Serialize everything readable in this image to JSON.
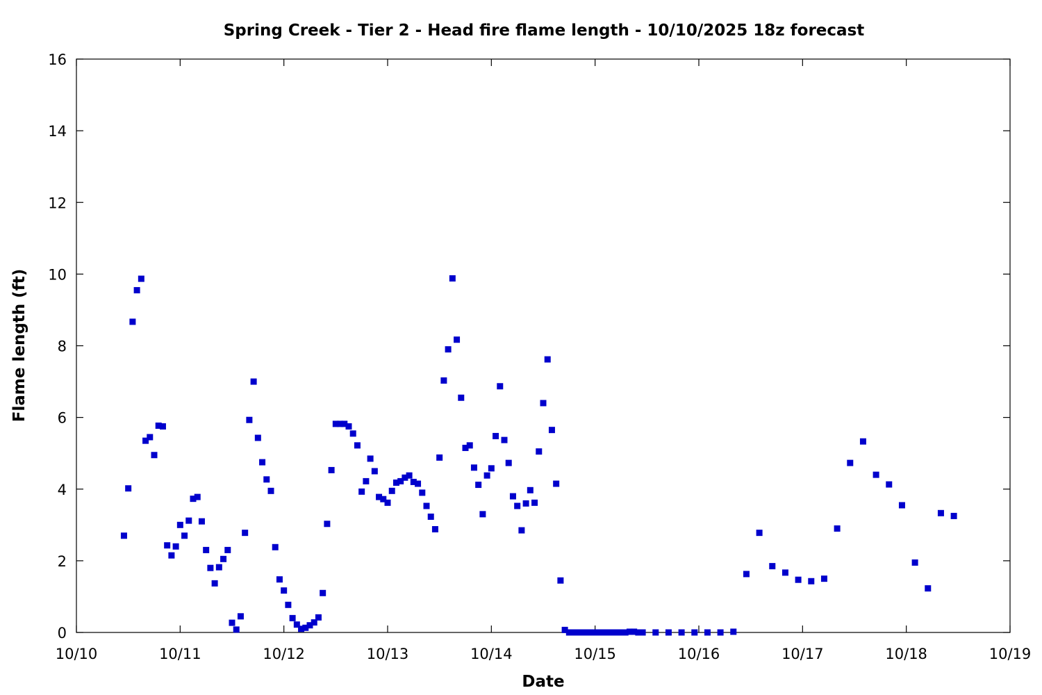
{
  "chart_data": {
    "type": "scatter",
    "title": "Spring Creek - Tier 2 - Head fire flame length - 10/10/2025 18z forecast",
    "xlabel": "Date",
    "ylabel": "Flame length (ft)",
    "x_unit": "days",
    "xlim": [
      "2025-10-10T00:00",
      "2025-10-19T00:00"
    ],
    "ylim": [
      0,
      16
    ],
    "x_tick_labels": [
      "10/10",
      "10/11",
      "10/12",
      "10/13",
      "10/14",
      "10/15",
      "10/16",
      "10/17",
      "10/18",
      "10/19"
    ],
    "y_tick_labels": [
      "0",
      "2",
      "4",
      "6",
      "8",
      "10",
      "12",
      "14",
      "16"
    ],
    "grid": false,
    "marker_color": "#0000cc",
    "marker": "square",
    "points": [
      [
        "2025-10-10T11:00",
        2.7
      ],
      [
        "2025-10-10T12:00",
        4.02
      ],
      [
        "2025-10-10T13:00",
        8.67
      ],
      [
        "2025-10-10T14:00",
        9.55
      ],
      [
        "2025-10-10T15:00",
        9.87
      ],
      [
        "2025-10-10T16:00",
        5.35
      ],
      [
        "2025-10-10T17:00",
        5.45
      ],
      [
        "2025-10-10T18:00",
        4.95
      ],
      [
        "2025-10-10T19:00",
        5.77
      ],
      [
        "2025-10-10T20:00",
        5.75
      ],
      [
        "2025-10-10T21:00",
        2.43
      ],
      [
        "2025-10-10T22:00",
        2.15
      ],
      [
        "2025-10-10T23:00",
        2.4
      ],
      [
        "2025-10-11T00:00",
        3.0
      ],
      [
        "2025-10-11T01:00",
        2.7
      ],
      [
        "2025-10-11T02:00",
        3.12
      ],
      [
        "2025-10-11T03:00",
        3.73
      ],
      [
        "2025-10-11T04:00",
        3.78
      ],
      [
        "2025-10-11T05:00",
        3.1
      ],
      [
        "2025-10-11T06:00",
        2.3
      ],
      [
        "2025-10-11T07:00",
        1.8
      ],
      [
        "2025-10-11T08:00",
        1.37
      ],
      [
        "2025-10-11T09:00",
        1.82
      ],
      [
        "2025-10-11T10:00",
        2.05
      ],
      [
        "2025-10-11T11:00",
        2.3
      ],
      [
        "2025-10-11T12:00",
        0.27
      ],
      [
        "2025-10-11T13:00",
        0.08
      ],
      [
        "2025-10-11T14:00",
        0.45
      ],
      [
        "2025-10-11T15:00",
        2.78
      ],
      [
        "2025-10-11T16:00",
        5.93
      ],
      [
        "2025-10-11T17:00",
        7.0
      ],
      [
        "2025-10-11T18:00",
        5.43
      ],
      [
        "2025-10-11T19:00",
        4.75
      ],
      [
        "2025-10-11T20:00",
        4.27
      ],
      [
        "2025-10-11T21:00",
        3.95
      ],
      [
        "2025-10-11T22:00",
        2.38
      ],
      [
        "2025-10-11T23:00",
        1.48
      ],
      [
        "2025-10-12T00:00",
        1.17
      ],
      [
        "2025-10-12T01:00",
        0.77
      ],
      [
        "2025-10-12T02:00",
        0.4
      ],
      [
        "2025-10-12T03:00",
        0.22
      ],
      [
        "2025-10-12T04:00",
        0.1
      ],
      [
        "2025-10-12T05:00",
        0.13
      ],
      [
        "2025-10-12T06:00",
        0.2
      ],
      [
        "2025-10-12T07:00",
        0.28
      ],
      [
        "2025-10-12T08:00",
        0.42
      ],
      [
        "2025-10-12T09:00",
        1.1
      ],
      [
        "2025-10-12T10:00",
        3.03
      ],
      [
        "2025-10-12T11:00",
        4.53
      ],
      [
        "2025-10-12T12:00",
        5.82
      ],
      [
        "2025-10-12T13:00",
        5.82
      ],
      [
        "2025-10-12T14:00",
        5.82
      ],
      [
        "2025-10-12T15:00",
        5.75
      ],
      [
        "2025-10-12T16:00",
        5.55
      ],
      [
        "2025-10-12T17:00",
        5.22
      ],
      [
        "2025-10-12T18:00",
        3.93
      ],
      [
        "2025-10-12T19:00",
        4.22
      ],
      [
        "2025-10-12T20:00",
        4.85
      ],
      [
        "2025-10-12T21:00",
        4.5
      ],
      [
        "2025-10-12T22:00",
        3.78
      ],
      [
        "2025-10-12T23:00",
        3.72
      ],
      [
        "2025-10-13T00:00",
        3.62
      ],
      [
        "2025-10-13T01:00",
        3.95
      ],
      [
        "2025-10-13T02:00",
        4.18
      ],
      [
        "2025-10-13T03:00",
        4.22
      ],
      [
        "2025-10-13T04:00",
        4.32
      ],
      [
        "2025-10-13T05:00",
        4.38
      ],
      [
        "2025-10-13T06:00",
        4.2
      ],
      [
        "2025-10-13T07:00",
        4.15
      ],
      [
        "2025-10-13T08:00",
        3.9
      ],
      [
        "2025-10-13T09:00",
        3.53
      ],
      [
        "2025-10-13T10:00",
        3.23
      ],
      [
        "2025-10-13T11:00",
        2.88
      ],
      [
        "2025-10-13T12:00",
        4.88
      ],
      [
        "2025-10-13T13:00",
        7.03
      ],
      [
        "2025-10-13T14:00",
        7.9
      ],
      [
        "2025-10-13T15:00",
        9.88
      ],
      [
        "2025-10-13T16:00",
        8.17
      ],
      [
        "2025-10-13T17:00",
        6.55
      ],
      [
        "2025-10-13T18:00",
        5.15
      ],
      [
        "2025-10-13T19:00",
        5.22
      ],
      [
        "2025-10-13T20:00",
        4.6
      ],
      [
        "2025-10-13T21:00",
        4.12
      ],
      [
        "2025-10-13T22:00",
        3.3
      ],
      [
        "2025-10-13T23:00",
        4.38
      ],
      [
        "2025-10-14T00:00",
        4.58
      ],
      [
        "2025-10-14T01:00",
        5.48
      ],
      [
        "2025-10-14T02:00",
        6.87
      ],
      [
        "2025-10-14T03:00",
        5.37
      ],
      [
        "2025-10-14T04:00",
        4.73
      ],
      [
        "2025-10-14T05:00",
        3.8
      ],
      [
        "2025-10-14T06:00",
        3.53
      ],
      [
        "2025-10-14T07:00",
        2.85
      ],
      [
        "2025-10-14T08:00",
        3.6
      ],
      [
        "2025-10-14T09:00",
        3.97
      ],
      [
        "2025-10-14T10:00",
        3.62
      ],
      [
        "2025-10-14T11:00",
        5.05
      ],
      [
        "2025-10-14T12:00",
        6.4
      ],
      [
        "2025-10-14T13:00",
        7.62
      ],
      [
        "2025-10-14T14:00",
        5.65
      ],
      [
        "2025-10-14T15:00",
        4.15
      ],
      [
        "2025-10-14T16:00",
        1.45
      ],
      [
        "2025-10-14T17:00",
        0.07
      ],
      [
        "2025-10-14T18:00",
        0.0
      ],
      [
        "2025-10-14T19:00",
        0.0
      ],
      [
        "2025-10-14T20:00",
        0.0
      ],
      [
        "2025-10-14T21:00",
        0.0
      ],
      [
        "2025-10-14T22:00",
        0.0
      ],
      [
        "2025-10-14T23:00",
        0.0
      ],
      [
        "2025-10-15T00:00",
        0.0
      ],
      [
        "2025-10-15T01:00",
        0.0
      ],
      [
        "2025-10-15T02:00",
        0.0
      ],
      [
        "2025-10-15T03:00",
        0.0
      ],
      [
        "2025-10-15T04:00",
        0.0
      ],
      [
        "2025-10-15T05:00",
        0.0
      ],
      [
        "2025-10-15T06:00",
        0.0
      ],
      [
        "2025-10-15T07:00",
        0.0
      ],
      [
        "2025-10-15T08:00",
        0.02
      ],
      [
        "2025-10-15T09:00",
        0.02
      ],
      [
        "2025-10-15T10:00",
        0.0
      ],
      [
        "2025-10-15T11:00",
        0.0
      ],
      [
        "2025-10-15T14:00",
        0.0
      ],
      [
        "2025-10-15T17:00",
        0.0
      ],
      [
        "2025-10-15T20:00",
        0.0
      ],
      [
        "2025-10-15T23:00",
        0.0
      ],
      [
        "2025-10-16T02:00",
        0.0
      ],
      [
        "2025-10-16T05:00",
        0.0
      ],
      [
        "2025-10-16T08:00",
        0.02
      ],
      [
        "2025-10-16T11:00",
        1.63
      ],
      [
        "2025-10-16T14:00",
        2.78
      ],
      [
        "2025-10-16T17:00",
        1.85
      ],
      [
        "2025-10-16T20:00",
        1.67
      ],
      [
        "2025-10-16T23:00",
        1.47
      ],
      [
        "2025-10-17T02:00",
        1.43
      ],
      [
        "2025-10-17T05:00",
        1.5
      ],
      [
        "2025-10-17T08:00",
        2.9
      ],
      [
        "2025-10-17T11:00",
        4.73
      ],
      [
        "2025-10-17T14:00",
        5.33
      ],
      [
        "2025-10-17T17:00",
        4.4
      ],
      [
        "2025-10-17T20:00",
        4.13
      ],
      [
        "2025-10-17T23:00",
        3.55
      ],
      [
        "2025-10-18T02:00",
        1.95
      ],
      [
        "2025-10-18T05:00",
        1.23
      ],
      [
        "2025-10-18T08:00",
        3.33
      ],
      [
        "2025-10-18T11:00",
        3.25
      ]
    ]
  }
}
